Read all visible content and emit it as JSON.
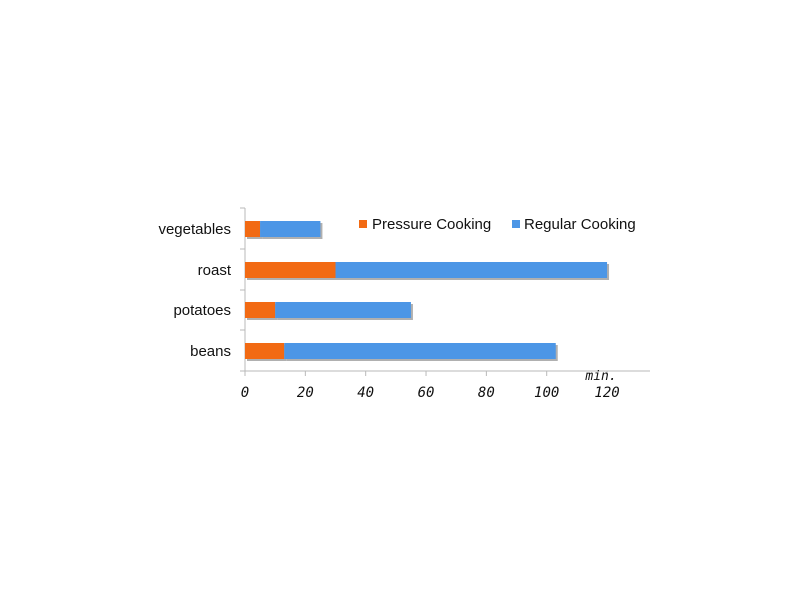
{
  "chart_data": {
    "type": "bar",
    "orientation": "horizontal",
    "stacked": true,
    "categories": [
      "vegetables",
      "roast",
      "potatoes",
      "beans"
    ],
    "series": [
      {
        "name": "Pressure Cooking",
        "values": [
          5,
          30,
          10,
          13
        ],
        "color": "#f26a13"
      },
      {
        "name": "Regular Cooking",
        "values": [
          20,
          90,
          45,
          90
        ],
        "color": "#4c96e6"
      }
    ],
    "xlim": [
      0,
      135
    ],
    "xticks": [
      0,
      20,
      40,
      60,
      80,
      100,
      120
    ],
    "x_unit_label": "min.",
    "grid": false,
    "legend_position": "top-right"
  }
}
